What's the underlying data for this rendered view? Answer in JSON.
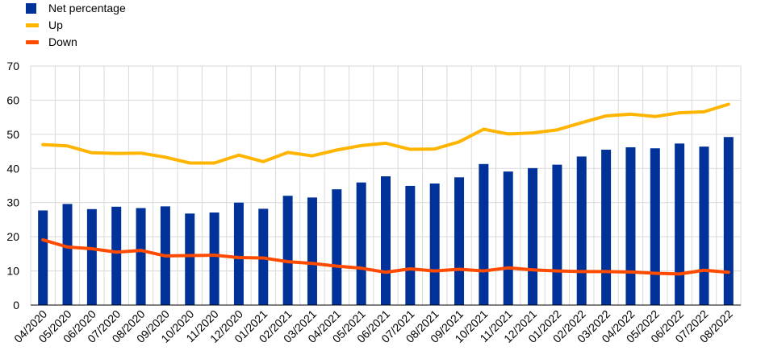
{
  "chart_data": {
    "type": "bar",
    "title": "",
    "xlabel": "",
    "ylabel": "",
    "ylim": [
      0,
      70
    ],
    "yticks": [
      0,
      10,
      20,
      30,
      40,
      50,
      60,
      70
    ],
    "grid": true,
    "legend_position": "top-left",
    "categories": [
      "04/2020",
      "05/2020",
      "06/2020",
      "07/2020",
      "08/2020",
      "09/2020",
      "10/2020",
      "11/2020",
      "12/2020",
      "01/2021",
      "02/2021",
      "03/2021",
      "04/2021",
      "05/2021",
      "06/2021",
      "07/2021",
      "08/2021",
      "09/2021",
      "10/2021",
      "11/2021",
      "12/2021",
      "01/2022",
      "02/2022",
      "03/2022",
      "04/2022",
      "05/2022",
      "06/2022",
      "07/2022",
      "08/2022"
    ],
    "series": [
      {
        "name": "Net percentage",
        "type": "bar",
        "color": "#003299",
        "values": [
          27.7,
          29.6,
          28.1,
          28.8,
          28.4,
          28.9,
          26.8,
          27.1,
          30.0,
          28.2,
          32.0,
          31.5,
          33.9,
          35.9,
          37.7,
          34.9,
          35.6,
          37.4,
          41.3,
          39.1,
          40.1,
          41.1,
          43.5,
          45.5,
          46.2,
          45.9,
          47.3,
          46.4,
          49.2
        ]
      },
      {
        "name": "Up",
        "type": "line",
        "color": "#FFB400",
        "values": [
          47.0,
          46.6,
          44.6,
          44.4,
          44.5,
          43.3,
          41.6,
          41.6,
          43.9,
          42.0,
          44.7,
          43.7,
          45.4,
          46.7,
          47.4,
          45.6,
          45.7,
          47.8,
          51.5,
          50.1,
          50.4,
          51.3,
          53.4,
          55.4,
          55.9,
          55.2,
          56.3,
          56.6,
          58.8
        ]
      },
      {
        "name": "Down",
        "type": "line",
        "color": "#FF4B00",
        "values": [
          19.1,
          17.0,
          16.5,
          15.5,
          16.0,
          14.4,
          14.5,
          14.6,
          13.9,
          13.8,
          12.7,
          12.2,
          11.4,
          10.8,
          9.6,
          10.6,
          10.0,
          10.5,
          10.0,
          10.9,
          10.3,
          10.0,
          9.8,
          9.8,
          9.7,
          9.3,
          9.1,
          10.2,
          9.6
        ]
      }
    ]
  }
}
